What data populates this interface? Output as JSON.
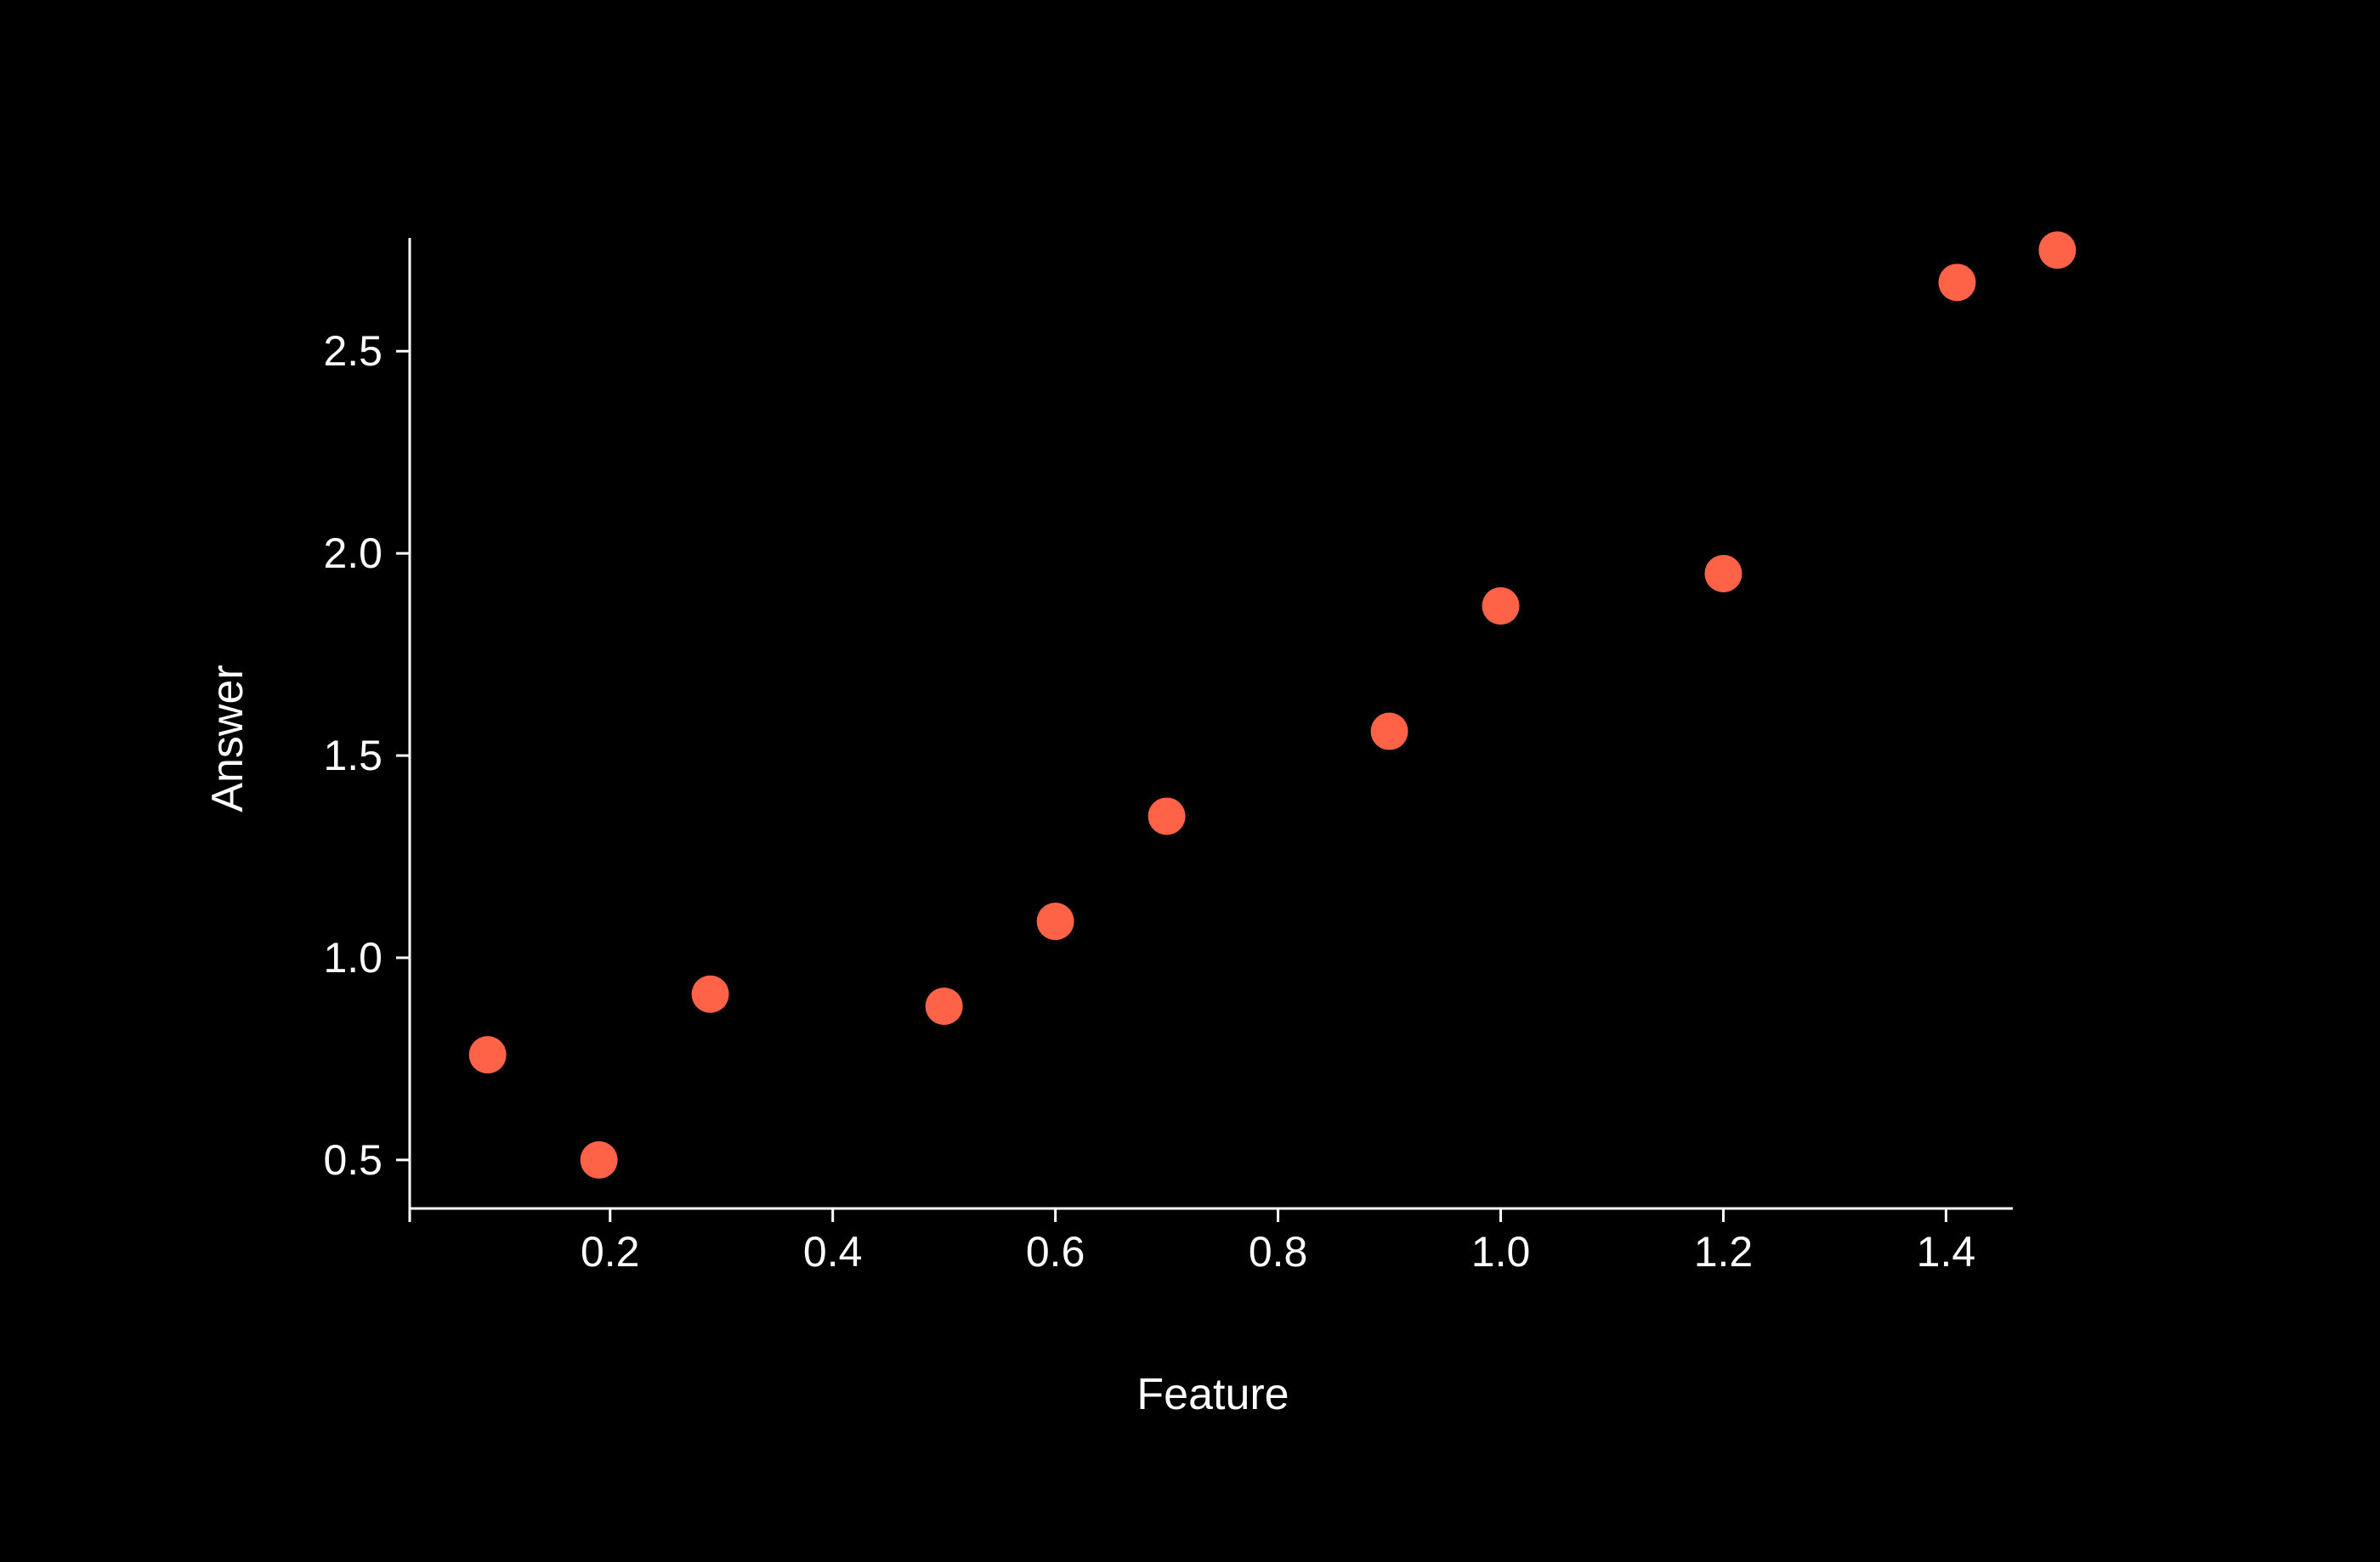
{
  "chart_data": {
    "type": "scatter",
    "title": "",
    "xlabel": "Feature",
    "ylabel": "Answer",
    "xlim": [
      0.02,
      1.46
    ],
    "ylim": [
      0.38,
      2.78
    ],
    "xticks": [
      0.2,
      0.4,
      0.6,
      0.8,
      1.0,
      1.2,
      1.4
    ],
    "xtick_labels": [
      "0.2",
      "0.4",
      "0.6",
      "0.8",
      "1.0",
      "1.2",
      "1.4"
    ],
    "yticks": [
      0.5,
      1.0,
      1.5,
      2.0,
      2.5
    ],
    "ytick_labels": [
      "0.5",
      "1.0",
      "1.5",
      "2.0",
      "2.5"
    ],
    "grid": false,
    "legend": "none",
    "series": [
      {
        "x": [
          0.09,
          0.19,
          0.29,
          0.5,
          0.6,
          0.7,
          0.9,
          1.0,
          1.2,
          1.41,
          1.5
        ],
        "y": [
          0.76,
          0.5,
          0.91,
          0.88,
          1.09,
          1.35,
          1.56,
          1.87,
          1.95,
          2.67,
          2.75
        ]
      }
    ],
    "colors": {
      "background": "#000000",
      "axis": "#ffffff",
      "text": "#ffffff",
      "marker": "#ff6347"
    }
  }
}
